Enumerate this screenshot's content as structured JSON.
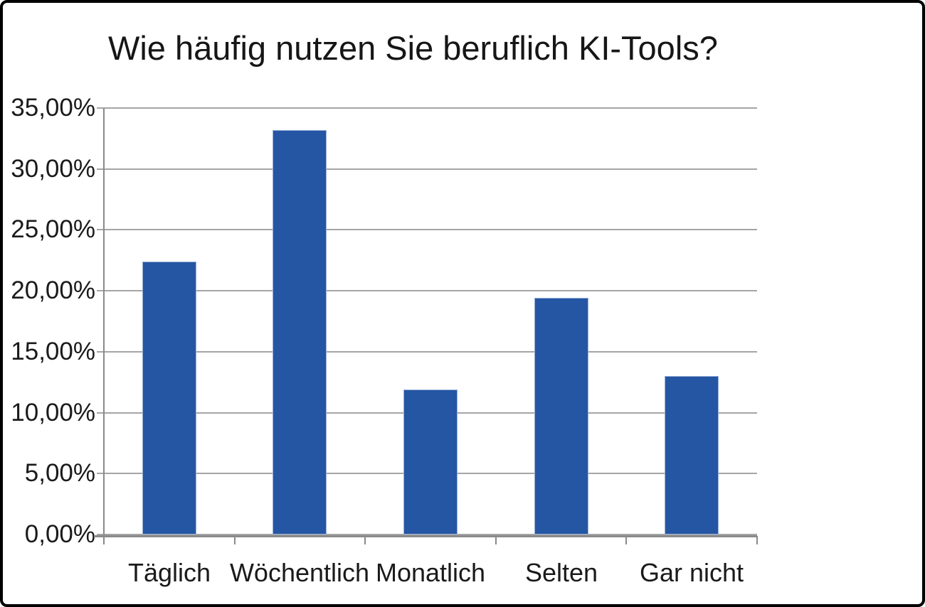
{
  "window": {
    "background_color": "#ffffff",
    "frame_border_color": "#000000"
  },
  "chart_data": {
    "type": "bar",
    "title": "Wie häufig nutzen Sie beruflich KI-Tools?",
    "categories": [
      "Täglich",
      "Wöchentlich",
      "Monatlich",
      "Selten",
      "Gar nicht"
    ],
    "values": [
      22.4,
      33.2,
      11.9,
      19.4,
      13.0
    ],
    "value_unit": "%",
    "xlabel": "",
    "ylabel": "",
    "ylim": [
      0,
      35
    ],
    "y_ticks": [
      0,
      5,
      10,
      15,
      20,
      25,
      30,
      35
    ],
    "y_tick_labels": [
      "0,00%",
      "5,00%",
      "10,00%",
      "15,00%",
      "20,00%",
      "25,00%",
      "30,00%",
      "35,00%"
    ],
    "grid": true,
    "legend": "none",
    "bar_color": "#2556A3",
    "bar_border_color": "#97B1D8",
    "gridline_color": "#A5A5A5",
    "axis_color": "#8A8A8A",
    "text_color": "#1a1a1a"
  }
}
